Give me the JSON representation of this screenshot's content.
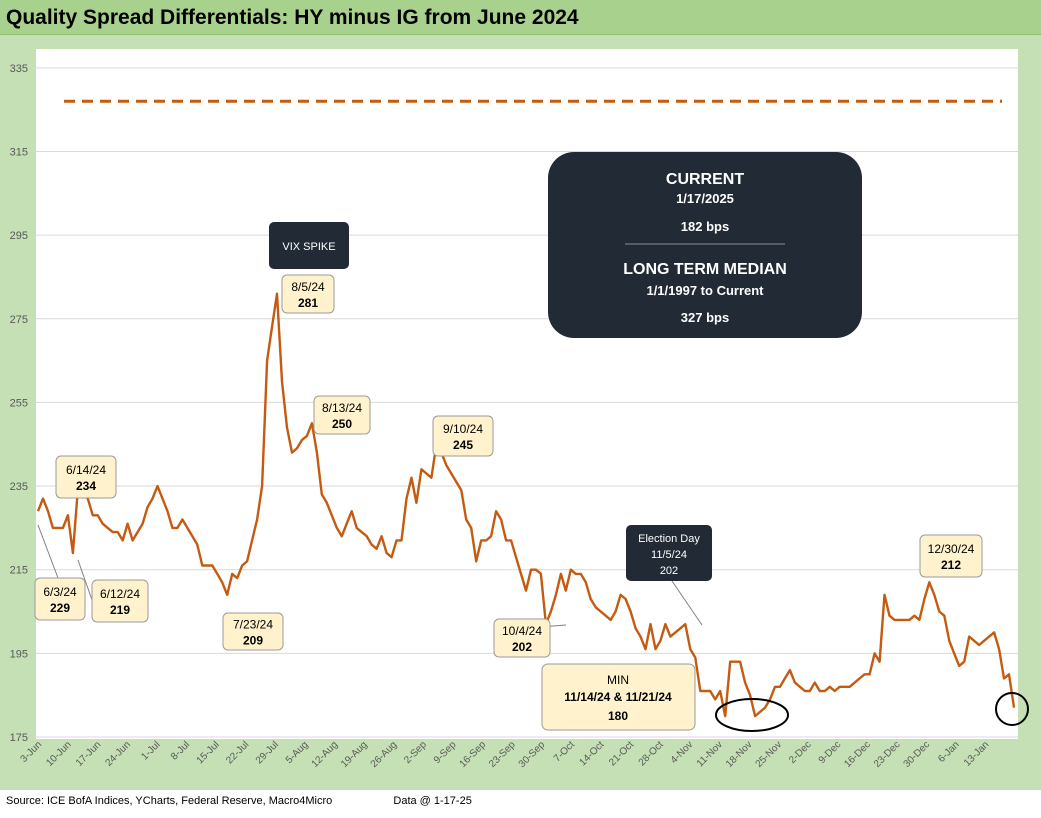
{
  "title": "Quality Spread Differentials: HY minus IG from June 2024",
  "footer": {
    "source": "Source: ICE BofA Indices, YCharts, Federal Reserve, Macro4Micro",
    "data_date": "Data @ 1-17-25"
  },
  "colors": {
    "line": "#c55a11",
    "median": "#c55a11",
    "dark_box": "#222a35",
    "callout": "#fff2cc",
    "frame": "#c5e0b4",
    "title_bar": "#a9d18e"
  },
  "chart_data": {
    "type": "line",
    "title": "Quality Spread Differentials: HY minus IG from June 2024",
    "xlabel": "",
    "ylabel": "",
    "ylim": [
      175,
      340
    ],
    "yticks": [
      175,
      195,
      215,
      235,
      255,
      275,
      295,
      315,
      335
    ],
    "grid": true,
    "xtick_labels": [
      "3-Jun",
      "10-Jun",
      "17-Jun",
      "24-Jun",
      "1-Jul",
      "8-Jul",
      "15-Jul",
      "22-Jul",
      "29-Jul",
      "5-Aug",
      "12-Aug",
      "19-Aug",
      "26-Aug",
      "2-Sep",
      "9-Sep",
      "16-Sep",
      "23-Sep",
      "30-Sep",
      "7-Oct",
      "14-Oct",
      "21-Oct",
      "28-Oct",
      "4-Nov",
      "11-Nov",
      "18-Nov",
      "25-Nov",
      "2-Dec",
      "9-Dec",
      "16-Dec",
      "23-Dec",
      "30-Dec",
      "6-Jan",
      "13-Jan"
    ],
    "median": 327,
    "series": [
      {
        "values": [
          229,
          232,
          229,
          225,
          225,
          225,
          228,
          219,
          234,
          233,
          232,
          228,
          228,
          226,
          225,
          224,
          224,
          222,
          226,
          222,
          224,
          226,
          230,
          232,
          235,
          232,
          229,
          225,
          225,
          227,
          225,
          223,
          221,
          216,
          216,
          216,
          214,
          212,
          209,
          214,
          213,
          216,
          217,
          222,
          227,
          235,
          265,
          273,
          281,
          260,
          249,
          243,
          244,
          246,
          247,
          250,
          243,
          233,
          231,
          228,
          225,
          223,
          226,
          229,
          225,
          224,
          223,
          221,
          220,
          223,
          219,
          218,
          222,
          222,
          232,
          237,
          231,
          239,
          238,
          237,
          245,
          243,
          240,
          238,
          236,
          234,
          227,
          225,
          217,
          222,
          222,
          223,
          229,
          227,
          222,
          222,
          218,
          214,
          210,
          215,
          215,
          214,
          202,
          205,
          209,
          214,
          210,
          215,
          214,
          214,
          212,
          208,
          206,
          205,
          204,
          203,
          205,
          209,
          208,
          205,
          201,
          199,
          196,
          202,
          196,
          198,
          202,
          199,
          200,
          201,
          202,
          196,
          194,
          186,
          186,
          186,
          184,
          186,
          180,
          193,
          193,
          193,
          188,
          185,
          180,
          181,
          182,
          184,
          187,
          187,
          189,
          191,
          188,
          187,
          186,
          186,
          188,
          186,
          186,
          187,
          186,
          187,
          187,
          187,
          188,
          189,
          190,
          190,
          195,
          193,
          209,
          204,
          203,
          203,
          203,
          203,
          204,
          203,
          208,
          212,
          209,
          205,
          204,
          198,
          195,
          192,
          193,
          199,
          198,
          197,
          198,
          199,
          200,
          196,
          189,
          190,
          182
        ],
        "color": "#c55a11"
      }
    ],
    "annotations": [
      {
        "label": "6/3/24",
        "value": "229"
      },
      {
        "label": "6/12/24",
        "value": "219"
      },
      {
        "label": "6/14/24",
        "value": "234"
      },
      {
        "label": "7/23/24",
        "value": "209"
      },
      {
        "label": "8/5/24",
        "value": "281"
      },
      {
        "label": "8/13/24",
        "value": "250"
      },
      {
        "label": "9/10/24",
        "value": "245"
      },
      {
        "label": "10/4/24",
        "value": "202"
      },
      {
        "label": "12/30/24",
        "value": "212"
      }
    ],
    "vix_label": "VIX SPIKE",
    "election": {
      "line1": "Election Day",
      "line2": "11/5/24",
      "line3": "202"
    },
    "min_box": {
      "line1": "MIN",
      "line2": "11/14/24 & 11/21/24",
      "line3": "180"
    },
    "info_box": {
      "current_label": "CURRENT",
      "current_date": "1/17/2025",
      "current_value": "182 bps",
      "median_label": "LONG TERM MEDIAN",
      "median_range": "1/1/1997 to Current",
      "median_value": "327 bps"
    }
  }
}
